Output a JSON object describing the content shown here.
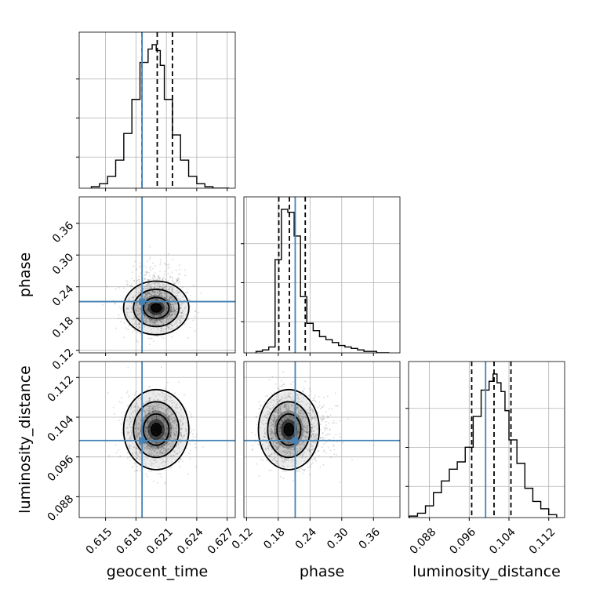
{
  "chart_data": {
    "type": "corner",
    "parameters": [
      "geocent_time",
      "phase",
      "luminosity_distance"
    ],
    "truth": {
      "geocent_time": 0.6186,
      "phase": 0.212,
      "luminosity_distance": 0.0993
    },
    "quantiles": {
      "geocent_time": [
        0.6186,
        0.6201,
        0.6216
      ],
      "phase": [
        0.181,
        0.201,
        0.231
      ],
      "luminosity_distance": [
        0.0965,
        0.101,
        0.1044
      ]
    },
    "axes": {
      "geocent_time": {
        "range": [
          0.6124,
          0.6278
        ],
        "ticks": [
          0.615,
          0.618,
          0.621,
          0.624,
          0.627
        ],
        "tick_labels": [
          "0.615",
          "0.618",
          "0.621",
          "0.624",
          "0.627"
        ]
      },
      "phase": {
        "range": [
          0.115,
          0.41
        ],
        "ticks": [
          0.12,
          0.18,
          0.24,
          0.3,
          0.36
        ],
        "tick_labels": [
          "0.12",
          "0.18",
          "0.24",
          "0.30",
          "0.36"
        ]
      },
      "luminosity_distance": {
        "range": [
          0.0838,
          0.1152
        ],
        "ticks": [
          0.088,
          0.096,
          0.104,
          0.112
        ],
        "tick_labels": [
          "0.088",
          "0.096",
          "0.104",
          "0.112"
        ]
      }
    },
    "histograms": {
      "geocent_time": {
        "bin_edges": [
          0.6136,
          0.6144,
          0.6152,
          0.616,
          0.6168,
          0.6176,
          0.6184,
          0.6192,
          0.6196,
          0.62,
          0.6204,
          0.6208,
          0.6216,
          0.6224,
          0.6232,
          0.624,
          0.6248,
          0.6256,
          0.6264,
          0.6272
        ],
        "counts": [
          1,
          3,
          8,
          19,
          37,
          60,
          85,
          94,
          97,
          93,
          83,
          60,
          36,
          19,
          8,
          3,
          1,
          0,
          0
        ]
      },
      "phase": {
        "bin_edges": [
          0.138,
          0.15,
          0.162,
          0.174,
          0.186,
          0.198,
          0.21,
          0.222,
          0.234,
          0.246,
          0.258,
          0.27,
          0.282,
          0.294,
          0.306,
          0.318,
          0.33,
          0.342,
          0.354,
          0.366,
          0.378,
          0.39
        ],
        "counts": [
          1,
          2,
          4,
          63,
          97,
          95,
          79,
          38,
          20,
          15,
          11,
          9,
          7,
          5,
          4,
          3,
          2,
          1,
          1,
          0,
          0
        ]
      },
      "luminosity_distance": {
        "bin_edges": [
          0.084,
          0.0856,
          0.0872,
          0.0888,
          0.0904,
          0.092,
          0.0936,
          0.0952,
          0.0968,
          0.0984,
          0.1,
          0.1008,
          0.1016,
          0.1024,
          0.1032,
          0.104,
          0.1056,
          0.1072,
          0.1088,
          0.1104,
          0.112,
          0.1136
        ],
        "counts": [
          1,
          3,
          8,
          17,
          25,
          33,
          38,
          48,
          69,
          87,
          93,
          98,
          92,
          86,
          73,
          53,
          37,
          20,
          11,
          6,
          2
        ]
      }
    },
    "pairs": [
      {
        "x": "geocent_time",
        "y": "phase",
        "center": [
          0.62,
          0.2
        ],
        "sigma": [
          0.0014,
          0.022
        ]
      },
      {
        "x": "geocent_time",
        "y": "luminosity_distance",
        "center": [
          0.62,
          0.1015
        ],
        "sigma": [
          0.0014,
          0.0035
        ]
      },
      {
        "x": "phase",
        "y": "luminosity_distance",
        "center": [
          0.2,
          0.1015
        ],
        "sigma": [
          0.025,
          0.0035
        ]
      }
    ],
    "colors": {
      "truth": "#4682b4",
      "hist": "#000000",
      "grid": "#b0b0b0"
    }
  }
}
